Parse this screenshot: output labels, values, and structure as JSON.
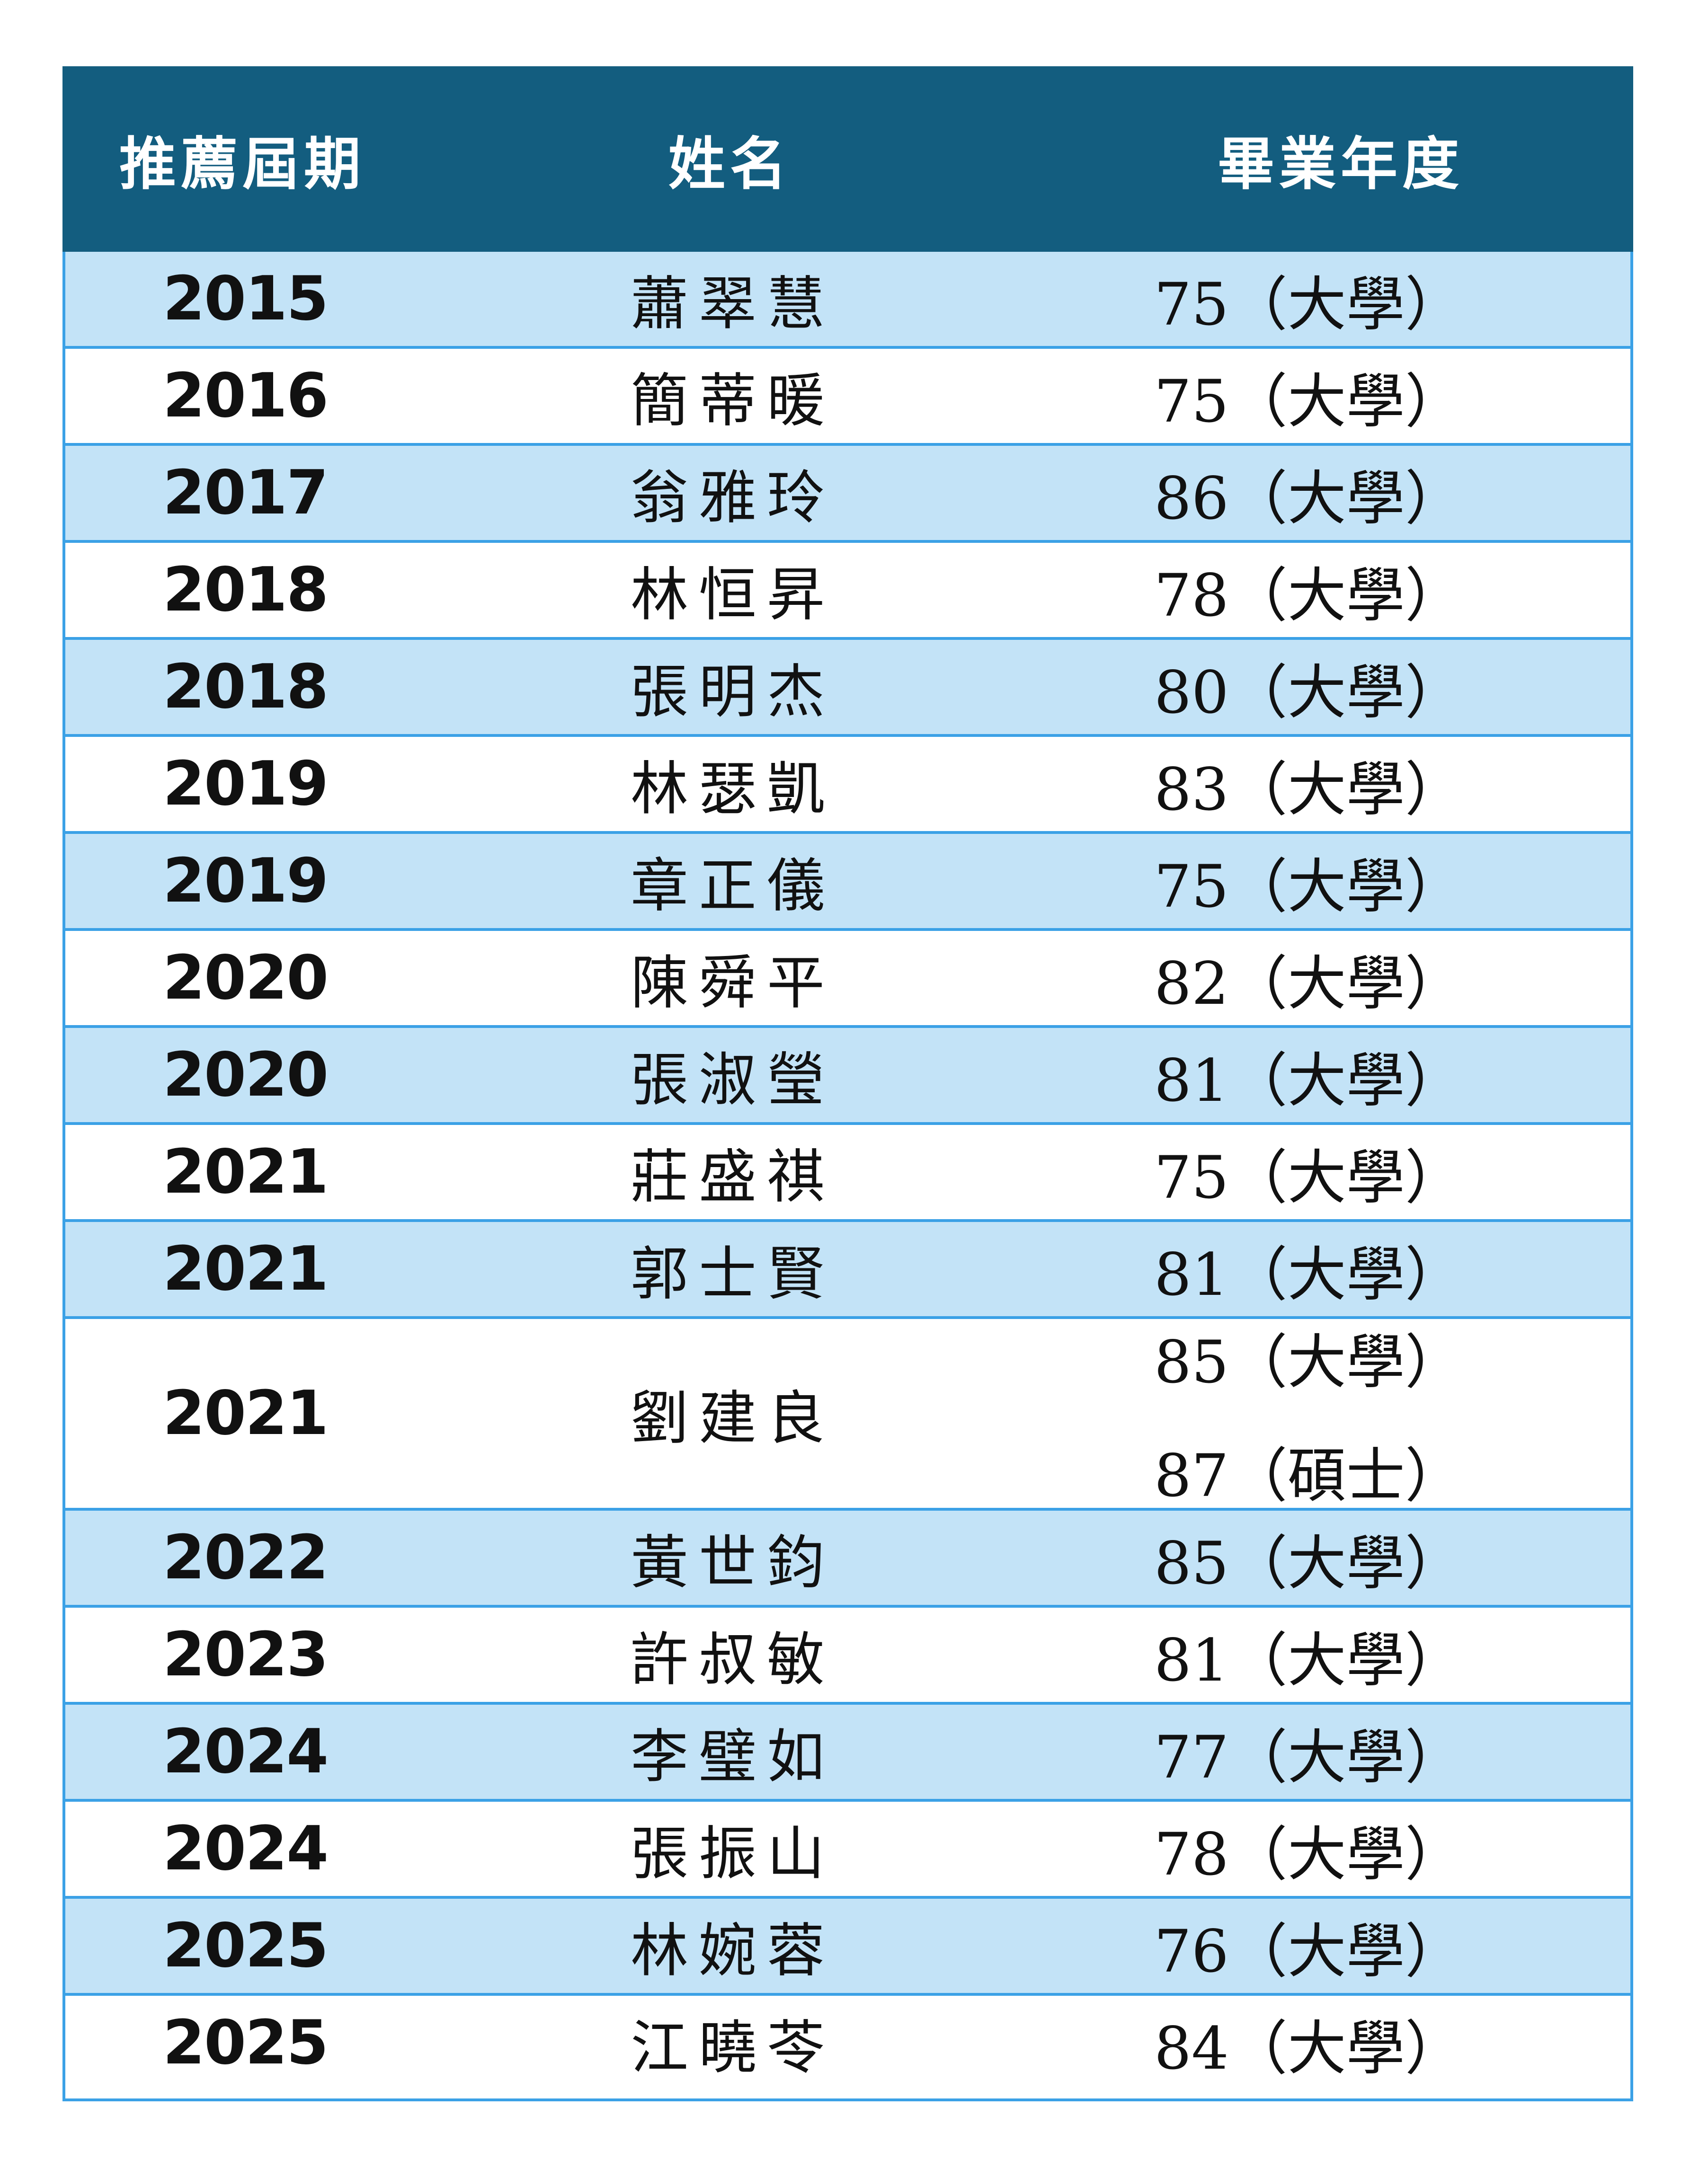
{
  "table": {
    "headers": {
      "term": "推薦屆期",
      "name": "姓名",
      "grad_year": "畢業年度"
    },
    "rows": [
      {
        "term": "2015",
        "name": "蕭翠慧",
        "grad": [
          "75（大學）"
        ]
      },
      {
        "term": "2016",
        "name": "簡蒂暖",
        "grad": [
          "75（大學）"
        ]
      },
      {
        "term": "2017",
        "name": "翁雅玲",
        "grad": [
          "86（大學）"
        ]
      },
      {
        "term": "2018",
        "name": "林恒昇",
        "grad": [
          "78（大學）"
        ]
      },
      {
        "term": "2018",
        "name": "張明杰",
        "grad": [
          "80（大學）"
        ]
      },
      {
        "term": "2019",
        "name": "林瑟凱",
        "grad": [
          "83（大學）"
        ]
      },
      {
        "term": "2019",
        "name": "章正儀",
        "grad": [
          "75（大學）"
        ]
      },
      {
        "term": "2020",
        "name": "陳舜平",
        "grad": [
          "82（大學）"
        ]
      },
      {
        "term": "2020",
        "name": "張淑瑩",
        "grad": [
          "81（大學）"
        ]
      },
      {
        "term": "2021",
        "name": "莊盛祺",
        "grad": [
          "75（大學）"
        ]
      },
      {
        "term": "2021",
        "name": "郭士賢",
        "grad": [
          "81（大學）"
        ]
      },
      {
        "term": "2021",
        "name": "劉建良",
        "grad": [
          "85（大學）",
          "87（碩士）"
        ]
      },
      {
        "term": "2022",
        "name": "黃世鈞",
        "grad": [
          "85（大學）"
        ]
      },
      {
        "term": "2023",
        "name": "許叔敏",
        "grad": [
          "81（大學）"
        ]
      },
      {
        "term": "2024",
        "name": "李璧如",
        "grad": [
          "77（大學）"
        ]
      },
      {
        "term": "2024",
        "name": "張振山",
        "grad": [
          "78（大學）"
        ]
      },
      {
        "term": "2025",
        "name": "林婉蓉",
        "grad": [
          "76（大學）"
        ]
      },
      {
        "term": "2025",
        "name": "江曉苓",
        "grad": [
          "84（大學）"
        ]
      }
    ]
  },
  "colors": {
    "header_bg": "#135d7f",
    "shaded_row": "#c3e3f7",
    "border": "#3ba1e6"
  }
}
